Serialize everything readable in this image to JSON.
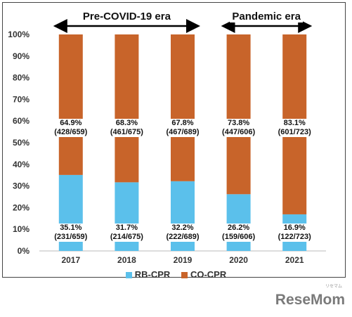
{
  "chart_data": {
    "type": "bar",
    "stacked": true,
    "categories": [
      "2017",
      "2018",
      "2019",
      "2020",
      "2021"
    ],
    "series": [
      {
        "name": "RB-CPR",
        "color": "#5BC0EB",
        "values": [
          35.1,
          31.7,
          32.2,
          26.2,
          16.9
        ],
        "labels": [
          "35.1%\n(231/659)",
          "31.7%\n(214/675)",
          "32.2%\n(222/689)",
          "26.2%\n(159/606)",
          "16.9%\n(122/723)"
        ]
      },
      {
        "name": "CO-CPR",
        "color": "#C8642A",
        "values": [
          64.9,
          68.3,
          67.8,
          73.8,
          83.1
        ],
        "labels": [
          "64.9%\n(428/659)",
          "68.3%\n(461/675)",
          "67.8%\n(467/689)",
          "73.8%\n(447/606)",
          "83.1%\n(601/723)"
        ]
      }
    ],
    "yticks": [
      "0%",
      "10%",
      "20%",
      "30%",
      "40%",
      "50%",
      "60%",
      "70%",
      "80%",
      "90%",
      "100%"
    ],
    "ylim": [
      0,
      100
    ],
    "legend_position": "bottom",
    "annotations": [
      {
        "text": "Pre-COVID-19 era",
        "from": "2017",
        "to": "2019"
      },
      {
        "text": "Pandemic era",
        "from": "2020",
        "to": "2021"
      }
    ]
  },
  "legend": {
    "rb": "RB-CPR",
    "co": "CO-CPR"
  },
  "logo": {
    "text": "ReseMom",
    "sup": "リセマム"
  }
}
